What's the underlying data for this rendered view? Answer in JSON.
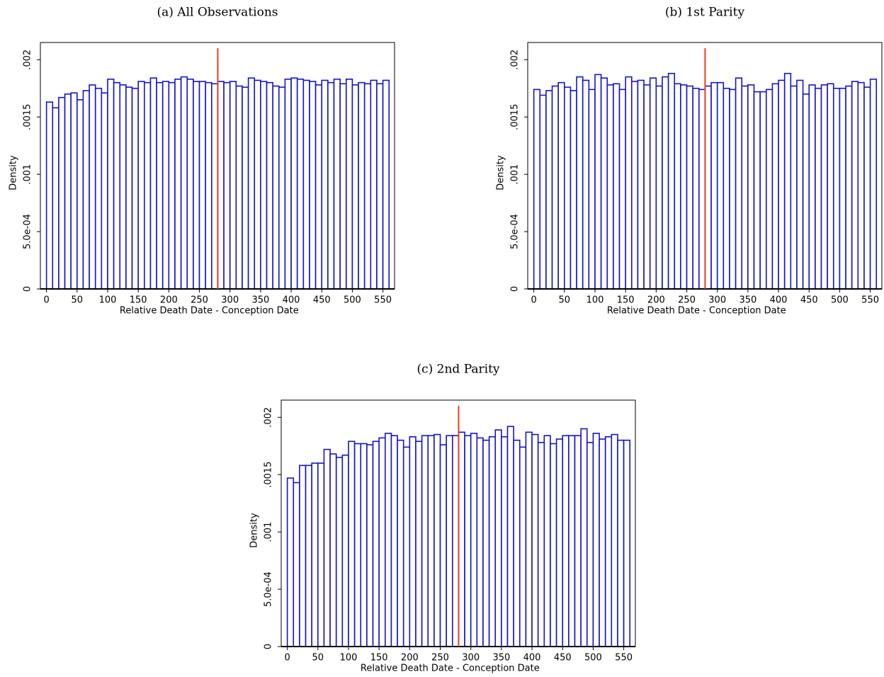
{
  "chart_data": [
    {
      "type": "histogram",
      "title": "(a) All Observations",
      "xlabel": "Relative Death Date - Conception Date",
      "ylabel": "Density",
      "bins": [
        0,
        10,
        20,
        30,
        40,
        50,
        60,
        70,
        80,
        90,
        100,
        110,
        120,
        130,
        140,
        150,
        160,
        170,
        180,
        190,
        200,
        210,
        220,
        230,
        240,
        250,
        260,
        270,
        280,
        290,
        300,
        310,
        320,
        330,
        340,
        350,
        360,
        370,
        380,
        390,
        400,
        410,
        420,
        430,
        440,
        450,
        460,
        470,
        480,
        490,
        500,
        510,
        520,
        530,
        540,
        550,
        560
      ],
      "values": [
        0.00163,
        0.00158,
        0.00167,
        0.0017,
        0.00171,
        0.00165,
        0.00173,
        0.00178,
        0.00175,
        0.00171,
        0.00183,
        0.0018,
        0.00178,
        0.00176,
        0.00175,
        0.00181,
        0.0018,
        0.00184,
        0.0018,
        0.00181,
        0.0018,
        0.00183,
        0.00185,
        0.00183,
        0.00181,
        0.00181,
        0.0018,
        0.00179,
        0.00181,
        0.0018,
        0.00181,
        0.00177,
        0.00176,
        0.00184,
        0.00182,
        0.00181,
        0.0018,
        0.00177,
        0.00176,
        0.00183,
        0.00184,
        0.00183,
        0.00182,
        0.00181,
        0.00178,
        0.00182,
        0.0018,
        0.00183,
        0.00179,
        0.00183,
        0.00178,
        0.0018,
        0.00179,
        0.00182,
        0.00179,
        0.00182
      ],
      "color": "#1414d2",
      "xlim": [
        -10,
        569
      ],
      "ylim": [
        0,
        0.00215
      ],
      "xticks": [
        0,
        50,
        100,
        150,
        200,
        250,
        300,
        350,
        400,
        450,
        500,
        550
      ],
      "yticks": [
        0,
        {
          "value": 0.0005,
          "label": "5.0e-04"
        },
        {
          "value": 0.001,
          "label": ".001"
        },
        {
          "value": 0.0015,
          "label": ".0015"
        },
        {
          "value": 0.002,
          "label": ".002"
        }
      ],
      "vline": {
        "x": 280,
        "ymax": 0.0021,
        "color": "#e8401c"
      }
    },
    {
      "type": "histogram",
      "title": "(b) 1st Parity",
      "xlabel": "Relative Death Date - Conception Date",
      "ylabel": "Density",
      "bins": [
        0,
        10,
        20,
        30,
        40,
        50,
        60,
        70,
        80,
        90,
        100,
        110,
        120,
        130,
        140,
        150,
        160,
        170,
        180,
        190,
        200,
        210,
        220,
        230,
        240,
        250,
        260,
        270,
        280,
        290,
        300,
        310,
        320,
        330,
        340,
        350,
        360,
        370,
        380,
        390,
        400,
        410,
        420,
        430,
        440,
        450,
        460,
        470,
        480,
        490,
        500,
        510,
        520,
        530,
        540,
        550,
        560
      ],
      "values": [
        0.00174,
        0.00169,
        0.00173,
        0.00177,
        0.0018,
        0.00176,
        0.00173,
        0.00185,
        0.00182,
        0.00174,
        0.00187,
        0.00184,
        0.00178,
        0.00179,
        0.00174,
        0.00185,
        0.00181,
        0.00182,
        0.00178,
        0.00184,
        0.00177,
        0.00185,
        0.00188,
        0.00179,
        0.00178,
        0.00177,
        0.00175,
        0.00174,
        0.00177,
        0.0018,
        0.0018,
        0.00175,
        0.00174,
        0.00184,
        0.00177,
        0.00178,
        0.00172,
        0.00172,
        0.00174,
        0.00179,
        0.00182,
        0.00188,
        0.00177,
        0.00182,
        0.0017,
        0.00178,
        0.00175,
        0.00178,
        0.00179,
        0.00175,
        0.00175,
        0.00177,
        0.00181,
        0.0018,
        0.00176,
        0.00183
      ],
      "color": "#1414d2",
      "xlim": [
        -10,
        569
      ],
      "ylim": [
        0,
        0.00215
      ],
      "xticks": [
        0,
        50,
        100,
        150,
        200,
        250,
        300,
        350,
        400,
        450,
        500,
        550
      ],
      "yticks": [
        0,
        {
          "value": 0.0005,
          "label": "5.0e-04"
        },
        {
          "value": 0.001,
          "label": ".001"
        },
        {
          "value": 0.0015,
          "label": ".0015"
        },
        {
          "value": 0.002,
          "label": ".002"
        }
      ],
      "vline": {
        "x": 280,
        "ymax": 0.0021,
        "color": "#e8401c"
      }
    },
    {
      "type": "histogram",
      "title": "(c) 2nd Parity",
      "xlabel": "Relative Death Date - Conception Date",
      "ylabel": "Density",
      "bins": [
        0,
        10,
        20,
        30,
        40,
        50,
        60,
        70,
        80,
        90,
        100,
        110,
        120,
        130,
        140,
        150,
        160,
        170,
        180,
        190,
        200,
        210,
        220,
        230,
        240,
        250,
        260,
        270,
        280,
        290,
        300,
        310,
        320,
        330,
        340,
        350,
        360,
        370,
        380,
        390,
        400,
        410,
        420,
        430,
        440,
        450,
        460,
        470,
        480,
        490,
        500,
        510,
        520,
        530,
        540,
        550,
        560
      ],
      "values": [
        0.00147,
        0.00143,
        0.00158,
        0.00158,
        0.0016,
        0.0016,
        0.00172,
        0.00168,
        0.00165,
        0.00167,
        0.00179,
        0.00177,
        0.00177,
        0.00176,
        0.00179,
        0.00182,
        0.00186,
        0.00184,
        0.0018,
        0.00174,
        0.00183,
        0.00179,
        0.00184,
        0.00184,
        0.00185,
        0.00176,
        0.00184,
        0.00184,
        0.00187,
        0.00184,
        0.00186,
        0.00182,
        0.0018,
        0.00183,
        0.00189,
        0.00183,
        0.00192,
        0.0018,
        0.00174,
        0.00187,
        0.00185,
        0.00178,
        0.00184,
        0.00177,
        0.00181,
        0.00184,
        0.00184,
        0.00184,
        0.0019,
        0.00178,
        0.00186,
        0.00181,
        0.00183,
        0.00185,
        0.0018,
        0.0018
      ],
      "color": "#1414d2",
      "xlim": [
        -10,
        569
      ],
      "ylim": [
        0,
        0.00215
      ],
      "xticks": [
        0,
        50,
        100,
        150,
        200,
        250,
        300,
        350,
        400,
        450,
        500,
        550
      ],
      "yticks": [
        0,
        {
          "value": 0.0005,
          "label": "5.0e-04"
        },
        {
          "value": 0.001,
          "label": ".001"
        },
        {
          "value": 0.0015,
          "label": ".0015"
        },
        {
          "value": 0.002,
          "label": ".002"
        }
      ],
      "vline": {
        "x": 280,
        "ymax": 0.0021,
        "color": "#e8401c"
      }
    }
  ]
}
